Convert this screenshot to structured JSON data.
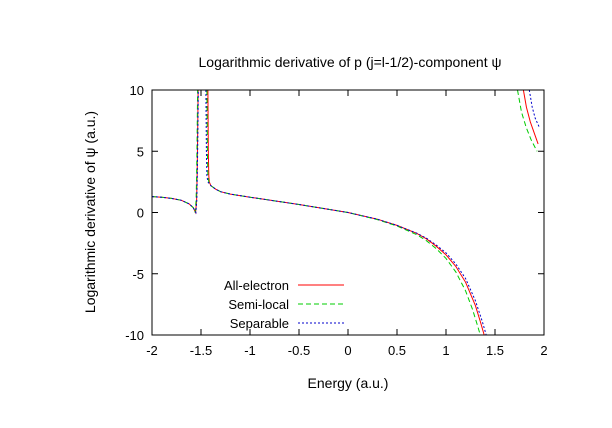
{
  "chart_data": {
    "type": "line",
    "title": "Logarithmic derivative of p (j=l-1/2)-component ψ",
    "xlabel": "Energy (a.u.)",
    "ylabel": "Logarithmic derivative of ψ (a.u.)",
    "xlim": [
      -2,
      2
    ],
    "ylim": [
      -10,
      10
    ],
    "xticks": [
      "-2",
      "-1.5",
      "-1",
      "-0.5",
      "0",
      "0.5",
      "1",
      "1.5",
      "2"
    ],
    "yticks": [
      "-10",
      "-5",
      "0",
      "5",
      "10"
    ],
    "grid": false,
    "legend_position": "bottom-left",
    "series": [
      {
        "name": "All-electron",
        "color": "#ff0000",
        "dash": "solid",
        "segments": [
          [
            [
              -2.0,
              1.3
            ],
            [
              -1.9,
              1.25
            ],
            [
              -1.8,
              1.15
            ],
            [
              -1.7,
              1.0
            ],
            [
              -1.62,
              0.7
            ],
            [
              -1.58,
              0.4
            ],
            [
              -1.555,
              0.0
            ],
            [
              -1.545,
              1.0
            ],
            [
              -1.54,
              3.0
            ],
            [
              -1.535,
              6.0
            ],
            [
              -1.53,
              10.0
            ]
          ],
          [
            [
              -1.43,
              10.0
            ],
            [
              -1.425,
              5.0
            ],
            [
              -1.42,
              3.0
            ],
            [
              -1.415,
              2.5
            ],
            [
              -1.4,
              2.2
            ],
            [
              -1.35,
              1.9
            ],
            [
              -1.3,
              1.7
            ],
            [
              -1.2,
              1.5
            ],
            [
              -1.0,
              1.25
            ],
            [
              -0.5,
              0.65
            ],
            [
              0.0,
              0.0
            ],
            [
              0.3,
              -0.55
            ],
            [
              0.5,
              -1.05
            ],
            [
              0.7,
              -1.7
            ],
            [
              0.8,
              -2.15
            ],
            [
              0.9,
              -2.75
            ],
            [
              1.0,
              -3.45
            ],
            [
              1.1,
              -4.4
            ],
            [
              1.2,
              -5.7
            ],
            [
              1.3,
              -7.6
            ],
            [
              1.35,
              -8.9
            ],
            [
              1.39,
              -10.0
            ]
          ],
          [
            [
              1.79,
              10.0
            ],
            [
              1.82,
              8.6
            ],
            [
              1.86,
              7.4
            ],
            [
              1.9,
              6.5
            ],
            [
              1.94,
              5.6
            ]
          ]
        ]
      },
      {
        "name": "Semi-local",
        "color": "#00cc00",
        "dash": "dashed",
        "segments": [
          [
            [
              -2.0,
              1.3
            ],
            [
              -1.9,
              1.25
            ],
            [
              -1.8,
              1.15
            ],
            [
              -1.7,
              1.0
            ],
            [
              -1.62,
              0.7
            ],
            [
              -1.58,
              0.4
            ],
            [
              -1.56,
              0.0
            ],
            [
              -1.55,
              1.0
            ],
            [
              -1.545,
              3.0
            ],
            [
              -1.54,
              6.0
            ],
            [
              -1.535,
              10.0
            ]
          ],
          [
            [
              -1.44,
              10.0
            ],
            [
              -1.435,
              5.0
            ],
            [
              -1.43,
              3.0
            ],
            [
              -1.42,
              2.5
            ],
            [
              -1.4,
              2.2
            ],
            [
              -1.35,
              1.9
            ],
            [
              -1.3,
              1.7
            ],
            [
              -1.2,
              1.5
            ],
            [
              -1.0,
              1.25
            ],
            [
              -0.5,
              0.65
            ],
            [
              0.0,
              0.0
            ],
            [
              0.3,
              -0.58
            ],
            [
              0.5,
              -1.1
            ],
            [
              0.7,
              -1.8
            ],
            [
              0.8,
              -2.3
            ],
            [
              0.9,
              -2.95
            ],
            [
              1.0,
              -3.75
            ],
            [
              1.1,
              -4.85
            ],
            [
              1.2,
              -6.4
            ],
            [
              1.27,
              -7.9
            ],
            [
              1.32,
              -9.2
            ],
            [
              1.35,
              -10.0
            ]
          ],
          [
            [
              1.73,
              10.0
            ],
            [
              1.77,
              8.2
            ],
            [
              1.82,
              6.9
            ],
            [
              1.87,
              5.9
            ],
            [
              1.93,
              5.0
            ]
          ]
        ]
      },
      {
        "name": "Separable",
        "color": "#0000cc",
        "dash": "dotted",
        "segments": [
          [
            [
              -2.0,
              1.3
            ],
            [
              -1.9,
              1.25
            ],
            [
              -1.8,
              1.15
            ],
            [
              -1.7,
              1.0
            ],
            [
              -1.62,
              0.7
            ],
            [
              -1.58,
              0.4
            ],
            [
              -1.552,
              0.0
            ],
            [
              -1.543,
              1.0
            ],
            [
              -1.538,
              3.0
            ],
            [
              -1.533,
              6.0
            ],
            [
              -1.528,
              10.0
            ]
          ],
          [
            [
              -1.45,
              10.0
            ],
            [
              -1.445,
              5.0
            ],
            [
              -1.44,
              3.0
            ],
            [
              -1.43,
              2.5
            ],
            [
              -1.4,
              2.2
            ],
            [
              -1.35,
              1.9
            ],
            [
              -1.3,
              1.7
            ],
            [
              -1.2,
              1.5
            ],
            [
              -1.0,
              1.25
            ],
            [
              -0.5,
              0.65
            ],
            [
              0.0,
              0.0
            ],
            [
              0.3,
              -0.55
            ],
            [
              0.5,
              -1.05
            ],
            [
              0.7,
              -1.68
            ],
            [
              0.8,
              -2.1
            ],
            [
              0.9,
              -2.65
            ],
            [
              1.0,
              -3.3
            ],
            [
              1.1,
              -4.2
            ],
            [
              1.2,
              -5.4
            ],
            [
              1.3,
              -7.2
            ],
            [
              1.37,
              -8.9
            ],
            [
              1.41,
              -10.0
            ]
          ],
          [
            [
              1.85,
              10.0
            ],
            [
              1.88,
              8.6
            ],
            [
              1.91,
              7.7
            ],
            [
              1.95,
              7.0
            ]
          ]
        ]
      }
    ]
  }
}
